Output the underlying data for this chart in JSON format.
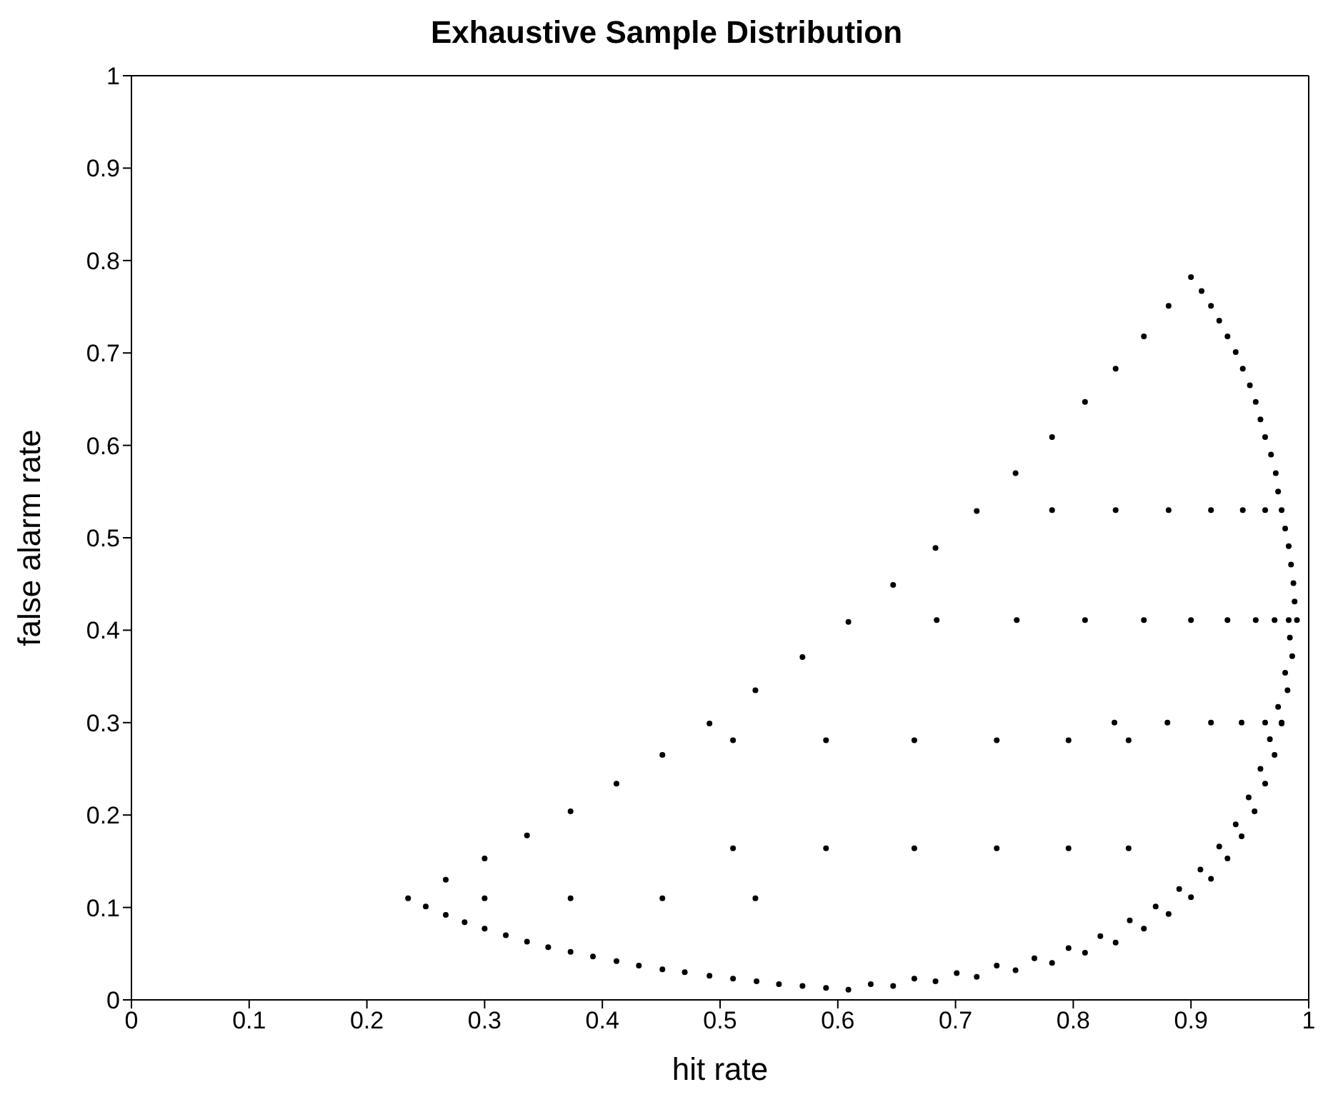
{
  "chart_data": {
    "type": "scatter",
    "title": "Exhaustive Sample Distribution",
    "xlabel": "hit rate",
    "ylabel": "false alarm rate",
    "xlim": [
      0,
      1
    ],
    "ylim": [
      0,
      1
    ],
    "xticks": [
      0,
      0.1,
      0.2,
      0.3,
      0.4,
      0.5,
      0.6,
      0.7,
      0.8,
      0.9,
      1
    ],
    "yticks": [
      0,
      0.1,
      0.2,
      0.3,
      0.4,
      0.5,
      0.6,
      0.7,
      0.8,
      0.9,
      1
    ],
    "legend": false,
    "marker": "circle",
    "series": [
      {
        "color": "#000000",
        "x": [
          0.235,
          0.267,
          0.3,
          0.336,
          0.373,
          0.412,
          0.451,
          0.491,
          0.53,
          0.25,
          0.267,
          0.283,
          0.3,
          0.318,
          0.336,
          0.354,
          0.373,
          0.392,
          0.412,
          0.431,
          0.451,
          0.47,
          0.491,
          0.3,
          0.373,
          0.451,
          0.53,
          0.57,
          0.609,
          0.647,
          0.683,
          0.718,
          0.511,
          0.531,
          0.55,
          0.57,
          0.59,
          0.609,
          0.628,
          0.647,
          0.665,
          0.683,
          0.701,
          0.718,
          0.735,
          0.751,
          0.767,
          0.782,
          0.796,
          0.81,
          0.823,
          0.836,
          0.511,
          0.59,
          0.665,
          0.735,
          0.796,
          0.847,
          0.511,
          0.59,
          0.665,
          0.735,
          0.796,
          0.847,
          0.751,
          0.782,
          0.81,
          0.836,
          0.86,
          0.881,
          0.9,
          0.909,
          0.917,
          0.924,
          0.931,
          0.938,
          0.944,
          0.95,
          0.955,
          0.959,
          0.963,
          0.968,
          0.972,
          0.974,
          0.977,
          0.98,
          0.983,
          0.985,
          0.987,
          0.988,
          0.99,
          0.684,
          0.752,
          0.81,
          0.86,
          0.9,
          0.931,
          0.955,
          0.971,
          0.983,
          0.782,
          0.836,
          0.881,
          0.917,
          0.944,
          0.963,
          0.984,
          0.986,
          0.98,
          0.982,
          0.974,
          0.977,
          0.967,
          0.971,
          0.959,
          0.963,
          0.949,
          0.954,
          0.938,
          0.943,
          0.924,
          0.931,
          0.908,
          0.917,
          0.89,
          0.9,
          0.87,
          0.881,
          0.848,
          0.86,
          0.835,
          0.88,
          0.917,
          0.943,
          0.963,
          0.977
        ],
        "values": [
          0.11,
          0.13,
          0.153,
          0.178,
          0.204,
          0.234,
          0.265,
          0.299,
          0.335,
          0.101,
          0.092,
          0.084,
          0.077,
          0.07,
          0.063,
          0.057,
          0.052,
          0.047,
          0.042,
          0.037,
          0.033,
          0.03,
          0.026,
          0.11,
          0.11,
          0.11,
          0.11,
          0.371,
          0.409,
          0.449,
          0.489,
          0.529,
          0.023,
          0.02,
          0.017,
          0.015,
          0.013,
          0.011,
          0.017,
          0.015,
          0.023,
          0.02,
          0.029,
          0.025,
          0.037,
          0.032,
          0.045,
          0.04,
          0.056,
          0.051,
          0.069,
          0.062,
          0.281,
          0.281,
          0.281,
          0.281,
          0.281,
          0.281,
          0.164,
          0.164,
          0.164,
          0.164,
          0.164,
          0.164,
          0.57,
          0.609,
          0.647,
          0.683,
          0.718,
          0.751,
          0.782,
          0.767,
          0.751,
          0.735,
          0.718,
          0.701,
          0.683,
          0.665,
          0.647,
          0.628,
          0.609,
          0.59,
          0.57,
          0.55,
          0.53,
          0.51,
          0.491,
          0.471,
          0.451,
          0.431,
          0.411,
          0.411,
          0.411,
          0.411,
          0.411,
          0.411,
          0.411,
          0.411,
          0.411,
          0.411,
          0.53,
          0.53,
          0.53,
          0.53,
          0.53,
          0.53,
          0.392,
          0.372,
          0.354,
          0.335,
          0.317,
          0.299,
          0.282,
          0.265,
          0.25,
          0.234,
          0.219,
          0.204,
          0.19,
          0.177,
          0.166,
          0.153,
          0.141,
          0.131,
          0.12,
          0.111,
          0.101,
          0.093,
          0.086,
          0.077,
          0.3,
          0.3,
          0.3,
          0.3,
          0.3,
          0.3
        ]
      }
    ]
  }
}
